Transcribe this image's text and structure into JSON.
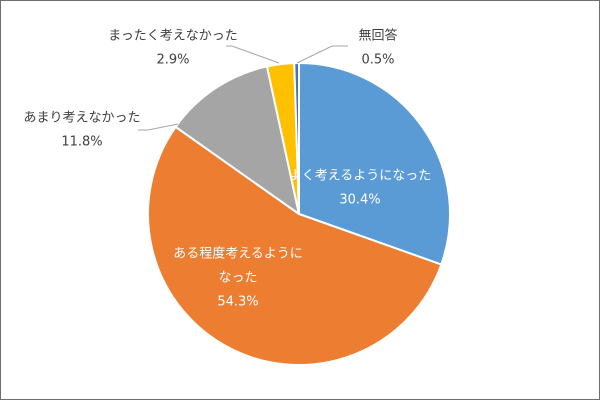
{
  "chart_data": {
    "type": "pie",
    "title": "",
    "start_angle_deg": 0,
    "direction": "clockwise",
    "slices": [
      {
        "label_lines": [
          "よく考えるようになった"
        ],
        "value": 30.4,
        "value_label": "30.4%",
        "color": "#5B9BD5",
        "label_position": "inside"
      },
      {
        "label_lines": [
          "ある程度考えるように",
          "なった"
        ],
        "value": 54.3,
        "value_label": "54.3%",
        "color": "#ED7D31",
        "label_position": "inside"
      },
      {
        "label_lines": [
          "あまり考えなかった"
        ],
        "value": 11.8,
        "value_label": "11.8%",
        "color": "#A5A5A5",
        "label_position": "outside"
      },
      {
        "label_lines": [
          "まったく考えなかった"
        ],
        "value": 2.9,
        "value_label": "2.9%",
        "color": "#FFC000",
        "label_position": "outside"
      },
      {
        "label_lines": [
          "無回答"
        ],
        "value": 0.5,
        "value_label": "0.5%",
        "color": "#4472C4",
        "label_position": "outside"
      }
    ]
  }
}
